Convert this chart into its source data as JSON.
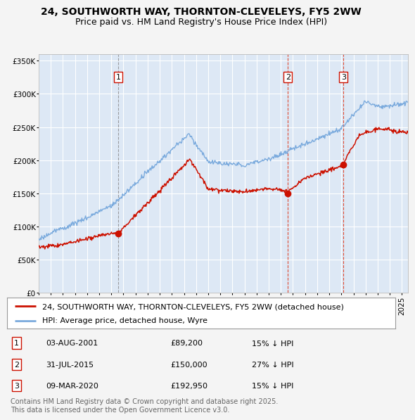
{
  "title": "24, SOUTHWORTH WAY, THORNTON-CLEVELEYS, FY5 2WW",
  "subtitle": "Price paid vs. HM Land Registry's House Price Index (HPI)",
  "xlim_start": 1995.0,
  "xlim_end": 2025.5,
  "ylim": [
    0,
    360000
  ],
  "yticks": [
    0,
    50000,
    100000,
    150000,
    200000,
    250000,
    300000,
    350000
  ],
  "fig_bg": "#f4f4f4",
  "plot_bg": "#dde8f5",
  "grid_color": "#ffffff",
  "hpi_color": "#7aaadd",
  "price_color": "#cc1100",
  "vline1_color": "#888888",
  "vline23_color": "#dd2200",
  "sale_dates": [
    2001.59,
    2015.58,
    2020.18
  ],
  "sale_prices": [
    89200,
    150000,
    192950
  ],
  "sale_labels": [
    "1",
    "2",
    "3"
  ],
  "legend_price_label": "24, SOUTHWORTH WAY, THORNTON-CLEVELEYS, FY5 2WW (detached house)",
  "legend_hpi_label": "HPI: Average price, detached house, Wyre",
  "table_rows": [
    [
      "1",
      "03-AUG-2001",
      "£89,200",
      "15% ↓ HPI"
    ],
    [
      "2",
      "31-JUL-2015",
      "£150,000",
      "27% ↓ HPI"
    ],
    [
      "3",
      "09-MAR-2020",
      "£192,950",
      "15% ↓ HPI"
    ]
  ],
  "footnote": "Contains HM Land Registry data © Crown copyright and database right 2025.\nThis data is licensed under the Open Government Licence v3.0.",
  "title_fontsize": 10,
  "subtitle_fontsize": 9,
  "tick_fontsize": 7.5,
  "legend_fontsize": 8,
  "table_fontsize": 8,
  "footnote_fontsize": 7
}
